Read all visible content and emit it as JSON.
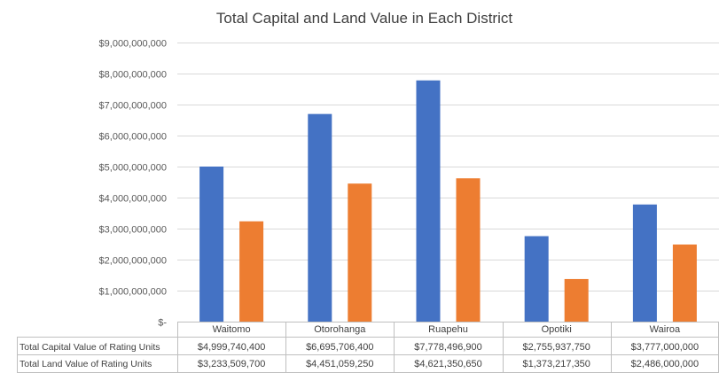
{
  "chart_data": {
    "type": "bar",
    "title": "Total Capital and Land Value in Each District",
    "categories": [
      "Waitomo",
      "Otorohanga",
      "Ruapehu",
      "Opotiki",
      "Wairoa"
    ],
    "series": [
      {
        "name": "Total Capital Value of Rating Units",
        "color": "#4472C4",
        "values": [
          4999740400,
          6695706400,
          7778496900,
          2755937750,
          3777000000
        ],
        "labels": [
          "$4,999,740,400",
          "$6,695,706,400",
          "$7,778,496,900",
          "$2,755,937,750",
          "$3,777,000,000"
        ]
      },
      {
        "name": "Total Land Value of Rating Units",
        "color": "#ED7D31",
        "values": [
          3233509700,
          4451059250,
          4621350650,
          1373217350,
          2486000000
        ],
        "labels": [
          "$3,233,509,700",
          "$4,451,059,250",
          "$4,621,350,650",
          "$1,373,217,350",
          "$2,486,000,000"
        ]
      }
    ],
    "ylim": [
      0,
      9000000000
    ],
    "yticks": [
      0,
      1000000000,
      2000000000,
      3000000000,
      4000000000,
      5000000000,
      6000000000,
      7000000000,
      8000000000,
      9000000000
    ],
    "ytick_labels": [
      "$-",
      "$1,000,000,000",
      "$2,000,000,000",
      "$3,000,000,000",
      "$4,000,000,000",
      "$5,000,000,000",
      "$6,000,000,000",
      "$7,000,000,000",
      "$8,000,000,000",
      "$9,000,000,000"
    ],
    "grid": true,
    "legend": "data-table"
  }
}
